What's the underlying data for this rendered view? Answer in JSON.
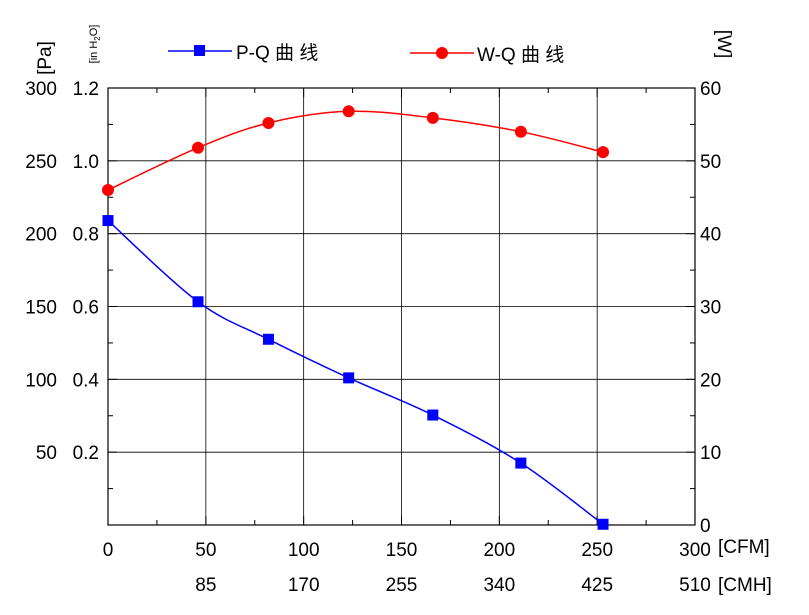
{
  "chart_data": {
    "type": "line",
    "title": "",
    "x": [
      0,
      46,
      82,
      123,
      166,
      211,
      253
    ],
    "x_unit": "[CFM]",
    "x2_unit": "[CMH]",
    "xlim": [
      0,
      300
    ],
    "x_ticks": [
      0,
      50,
      100,
      150,
      200,
      250,
      300
    ],
    "x2_ticks": [
      "85",
      "170",
      "255",
      "340",
      "425",
      "510"
    ],
    "y_left_outer_unit": "[Pa]",
    "y_left_outer_ticks": [
      "50",
      "100",
      "150",
      "200",
      "250",
      "300"
    ],
    "y_left_inner_unit_main": "[in H",
    "y_left_inner_unit_sub": "2",
    "y_left_inner_unit_end": "O]",
    "ylim": [
      0,
      1.2
    ],
    "y_left_inner_ticks": [
      "0.2",
      "0.4",
      "0.6",
      "0.8",
      "1.0",
      "1.2"
    ],
    "y_right_unit": "[W]",
    "y2lim": [
      0,
      60
    ],
    "y_right_ticks": [
      "0",
      "10",
      "20",
      "30",
      "40",
      "50",
      "60"
    ],
    "series": [
      {
        "name": "P-Q 曲 线",
        "axis": "left",
        "color": "#0000ff",
        "marker": "square",
        "values": [
          0.836,
          0.613,
          0.51,
          0.404,
          0.302,
          0.17,
          0.002
        ]
      },
      {
        "name": "W-Q 曲 线",
        "axis": "right",
        "color": "#ff0000",
        "marker": "circle",
        "values": [
          46.0,
          51.8,
          55.2,
          56.8,
          55.9,
          54.0,
          51.2
        ]
      }
    ],
    "grid": true,
    "legend": "top"
  }
}
